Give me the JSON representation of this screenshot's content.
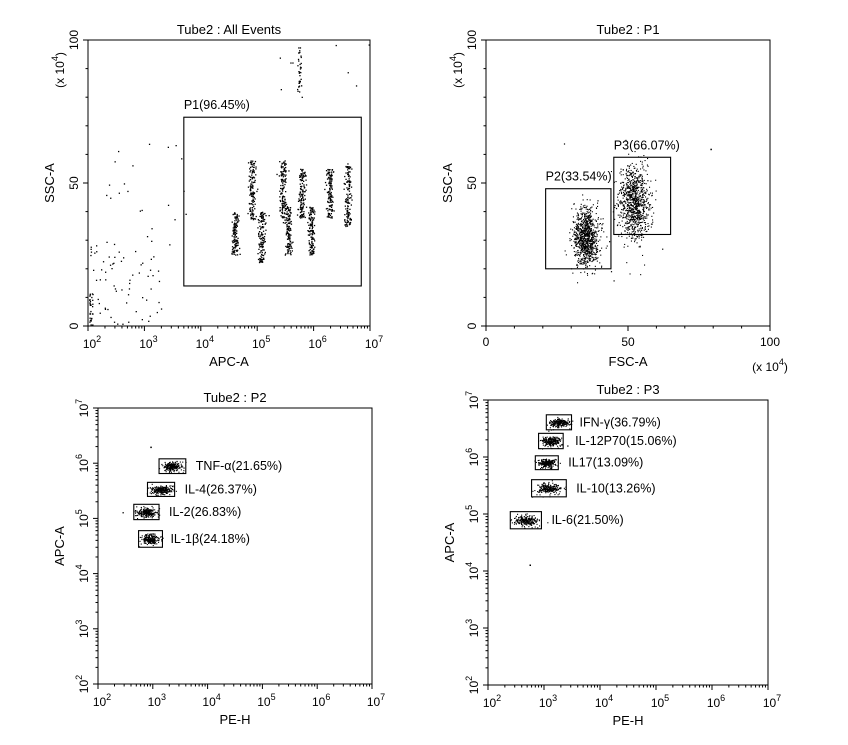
{
  "chart_data": [
    {
      "type": "scatter",
      "title": "Tube2 : All Events",
      "xlabel": "APC-A",
      "ylabel": "SSC-A",
      "y_multiplier": "(x 10",
      "y_multiplier_exp": "4",
      "y_multiplier_close": ")",
      "x_scale": "log",
      "y_scale": "linear",
      "xlim": [
        100,
        10000000
      ],
      "ylim": [
        0,
        100
      ],
      "x_ticks": [
        {
          "base": "10",
          "exp": "2"
        },
        {
          "base": "10",
          "exp": "3"
        },
        {
          "base": "10",
          "exp": "4"
        },
        {
          "base": "10",
          "exp": "5"
        },
        {
          "base": "10",
          "exp": "6"
        },
        {
          "base": "10",
          "exp": "7"
        }
      ],
      "y_ticks": [
        "0",
        "50",
        "100"
      ],
      "gates": [
        {
          "label": "P1(96.45%)",
          "x": [
            5000,
            7000000
          ],
          "y": [
            14,
            73
          ]
        }
      ],
      "clusters": [
        {
          "x": 40000,
          "y": [
            25,
            40
          ]
        },
        {
          "x": 80000,
          "y": [
            37,
            58
          ]
        },
        {
          "x": 120000,
          "y": [
            22,
            40
          ]
        },
        {
          "x": 280000,
          "y": [
            38,
            58
          ]
        },
        {
          "x": 350000,
          "y": [
            25,
            42
          ]
        },
        {
          "x": 600000,
          "y": [
            38,
            55
          ]
        },
        {
          "x": 900000,
          "y": [
            25,
            42
          ]
        },
        {
          "x": 1900000,
          "y": [
            38,
            55
          ]
        },
        {
          "x": 4000000,
          "y": [
            35,
            57
          ]
        }
      ]
    },
    {
      "type": "scatter",
      "title": "Tube2 : P1",
      "xlabel": "FSC-A",
      "ylabel": "SSC-A",
      "x_multiplier": "(x 10",
      "x_multiplier_exp": "4",
      "x_multiplier_close": ")",
      "y_multiplier": "(x 10",
      "y_multiplier_exp": "4",
      "y_multiplier_close": ")",
      "x_scale": "linear",
      "y_scale": "linear",
      "xlim": [
        0,
        100
      ],
      "ylim": [
        0,
        100
      ],
      "x_ticks": [
        "0",
        "50",
        "100"
      ],
      "y_ticks": [
        "0",
        "50",
        "100"
      ],
      "gates": [
        {
          "label": "P2(33.54%)",
          "x": [
            21,
            44
          ],
          "y": [
            20,
            48
          ]
        },
        {
          "label": "P3(66.07%)",
          "x": [
            45,
            65
          ],
          "y": [
            32,
            59
          ]
        }
      ],
      "clusters": [
        {
          "x": 35,
          "y": 31,
          "sx": 2.2,
          "sy": 5
        },
        {
          "x": 52,
          "y": 43,
          "sx": 2.6,
          "sy": 6.5
        }
      ]
    },
    {
      "type": "scatter",
      "title": "Tube2 : P2",
      "xlabel": "PE-H",
      "ylabel": "APC-A",
      "x_scale": "log",
      "y_scale": "log",
      "xlim": [
        100,
        10000000
      ],
      "ylim": [
        100,
        10000000
      ],
      "x_ticks": [
        {
          "base": "10",
          "exp": "2"
        },
        {
          "base": "10",
          "exp": "3"
        },
        {
          "base": "10",
          "exp": "4"
        },
        {
          "base": "10",
          "exp": "5"
        },
        {
          "base": "10",
          "exp": "6"
        },
        {
          "base": "10",
          "exp": "7"
        }
      ],
      "y_ticks": [
        {
          "base": "10",
          "exp": "2"
        },
        {
          "base": "10",
          "exp": "3"
        },
        {
          "base": "10",
          "exp": "4"
        },
        {
          "base": "10",
          "exp": "5"
        },
        {
          "base": "10",
          "exp": "6"
        },
        {
          "base": "10",
          "exp": "7"
        }
      ],
      "gates": [
        {
          "label": "TNF-α(21.65%)",
          "x": [
            1300,
            4000
          ],
          "y": [
            650000,
            1200000
          ]
        },
        {
          "label": "IL-4(26.37%)",
          "x": [
            800,
            2500
          ],
          "y": [
            250000,
            450000
          ]
        },
        {
          "label": "IL-2(26.83%)",
          "x": [
            450,
            1300
          ],
          "y": [
            95000,
            180000
          ]
        },
        {
          "label": "IL-1β(24.18%)",
          "x": [
            550,
            1500
          ],
          "y": [
            30000,
            60000
          ]
        }
      ]
    },
    {
      "type": "scatter",
      "title": "Tube2 : P3",
      "xlabel": "PE-H",
      "ylabel": "APC-A",
      "x_scale": "log",
      "y_scale": "log",
      "xlim": [
        100,
        10000000
      ],
      "ylim": [
        100,
        10000000
      ],
      "x_ticks": [
        {
          "base": "10",
          "exp": "2"
        },
        {
          "base": "10",
          "exp": "3"
        },
        {
          "base": "10",
          "exp": "4"
        },
        {
          "base": "10",
          "exp": "5"
        },
        {
          "base": "10",
          "exp": "6"
        },
        {
          "base": "10",
          "exp": "7"
        }
      ],
      "y_ticks": [
        {
          "base": "10",
          "exp": "2"
        },
        {
          "base": "10",
          "exp": "3"
        },
        {
          "base": "10",
          "exp": "4"
        },
        {
          "base": "10",
          "exp": "5"
        },
        {
          "base": "10",
          "exp": "6"
        },
        {
          "base": "10",
          "exp": "7"
        }
      ],
      "gates": [
        {
          "label": "IFN-γ(36.79%)",
          "x": [
            1100,
            3100
          ],
          "y": [
            3000000,
            5500000
          ]
        },
        {
          "label": "IL-12P70(15.06%)",
          "x": [
            800,
            2200
          ],
          "y": [
            1400000,
            2600000
          ]
        },
        {
          "label": "IL17(13.09%)",
          "x": [
            700,
            1800
          ],
          "y": [
            600000,
            1050000
          ]
        },
        {
          "label": "IL-10(13.26%)",
          "x": [
            600,
            2500
          ],
          "y": [
            200000,
            400000
          ]
        },
        {
          "label": "IL-6(21.50%)",
          "x": [
            250,
            900
          ],
          "y": [
            55000,
            110000
          ]
        }
      ]
    }
  ]
}
